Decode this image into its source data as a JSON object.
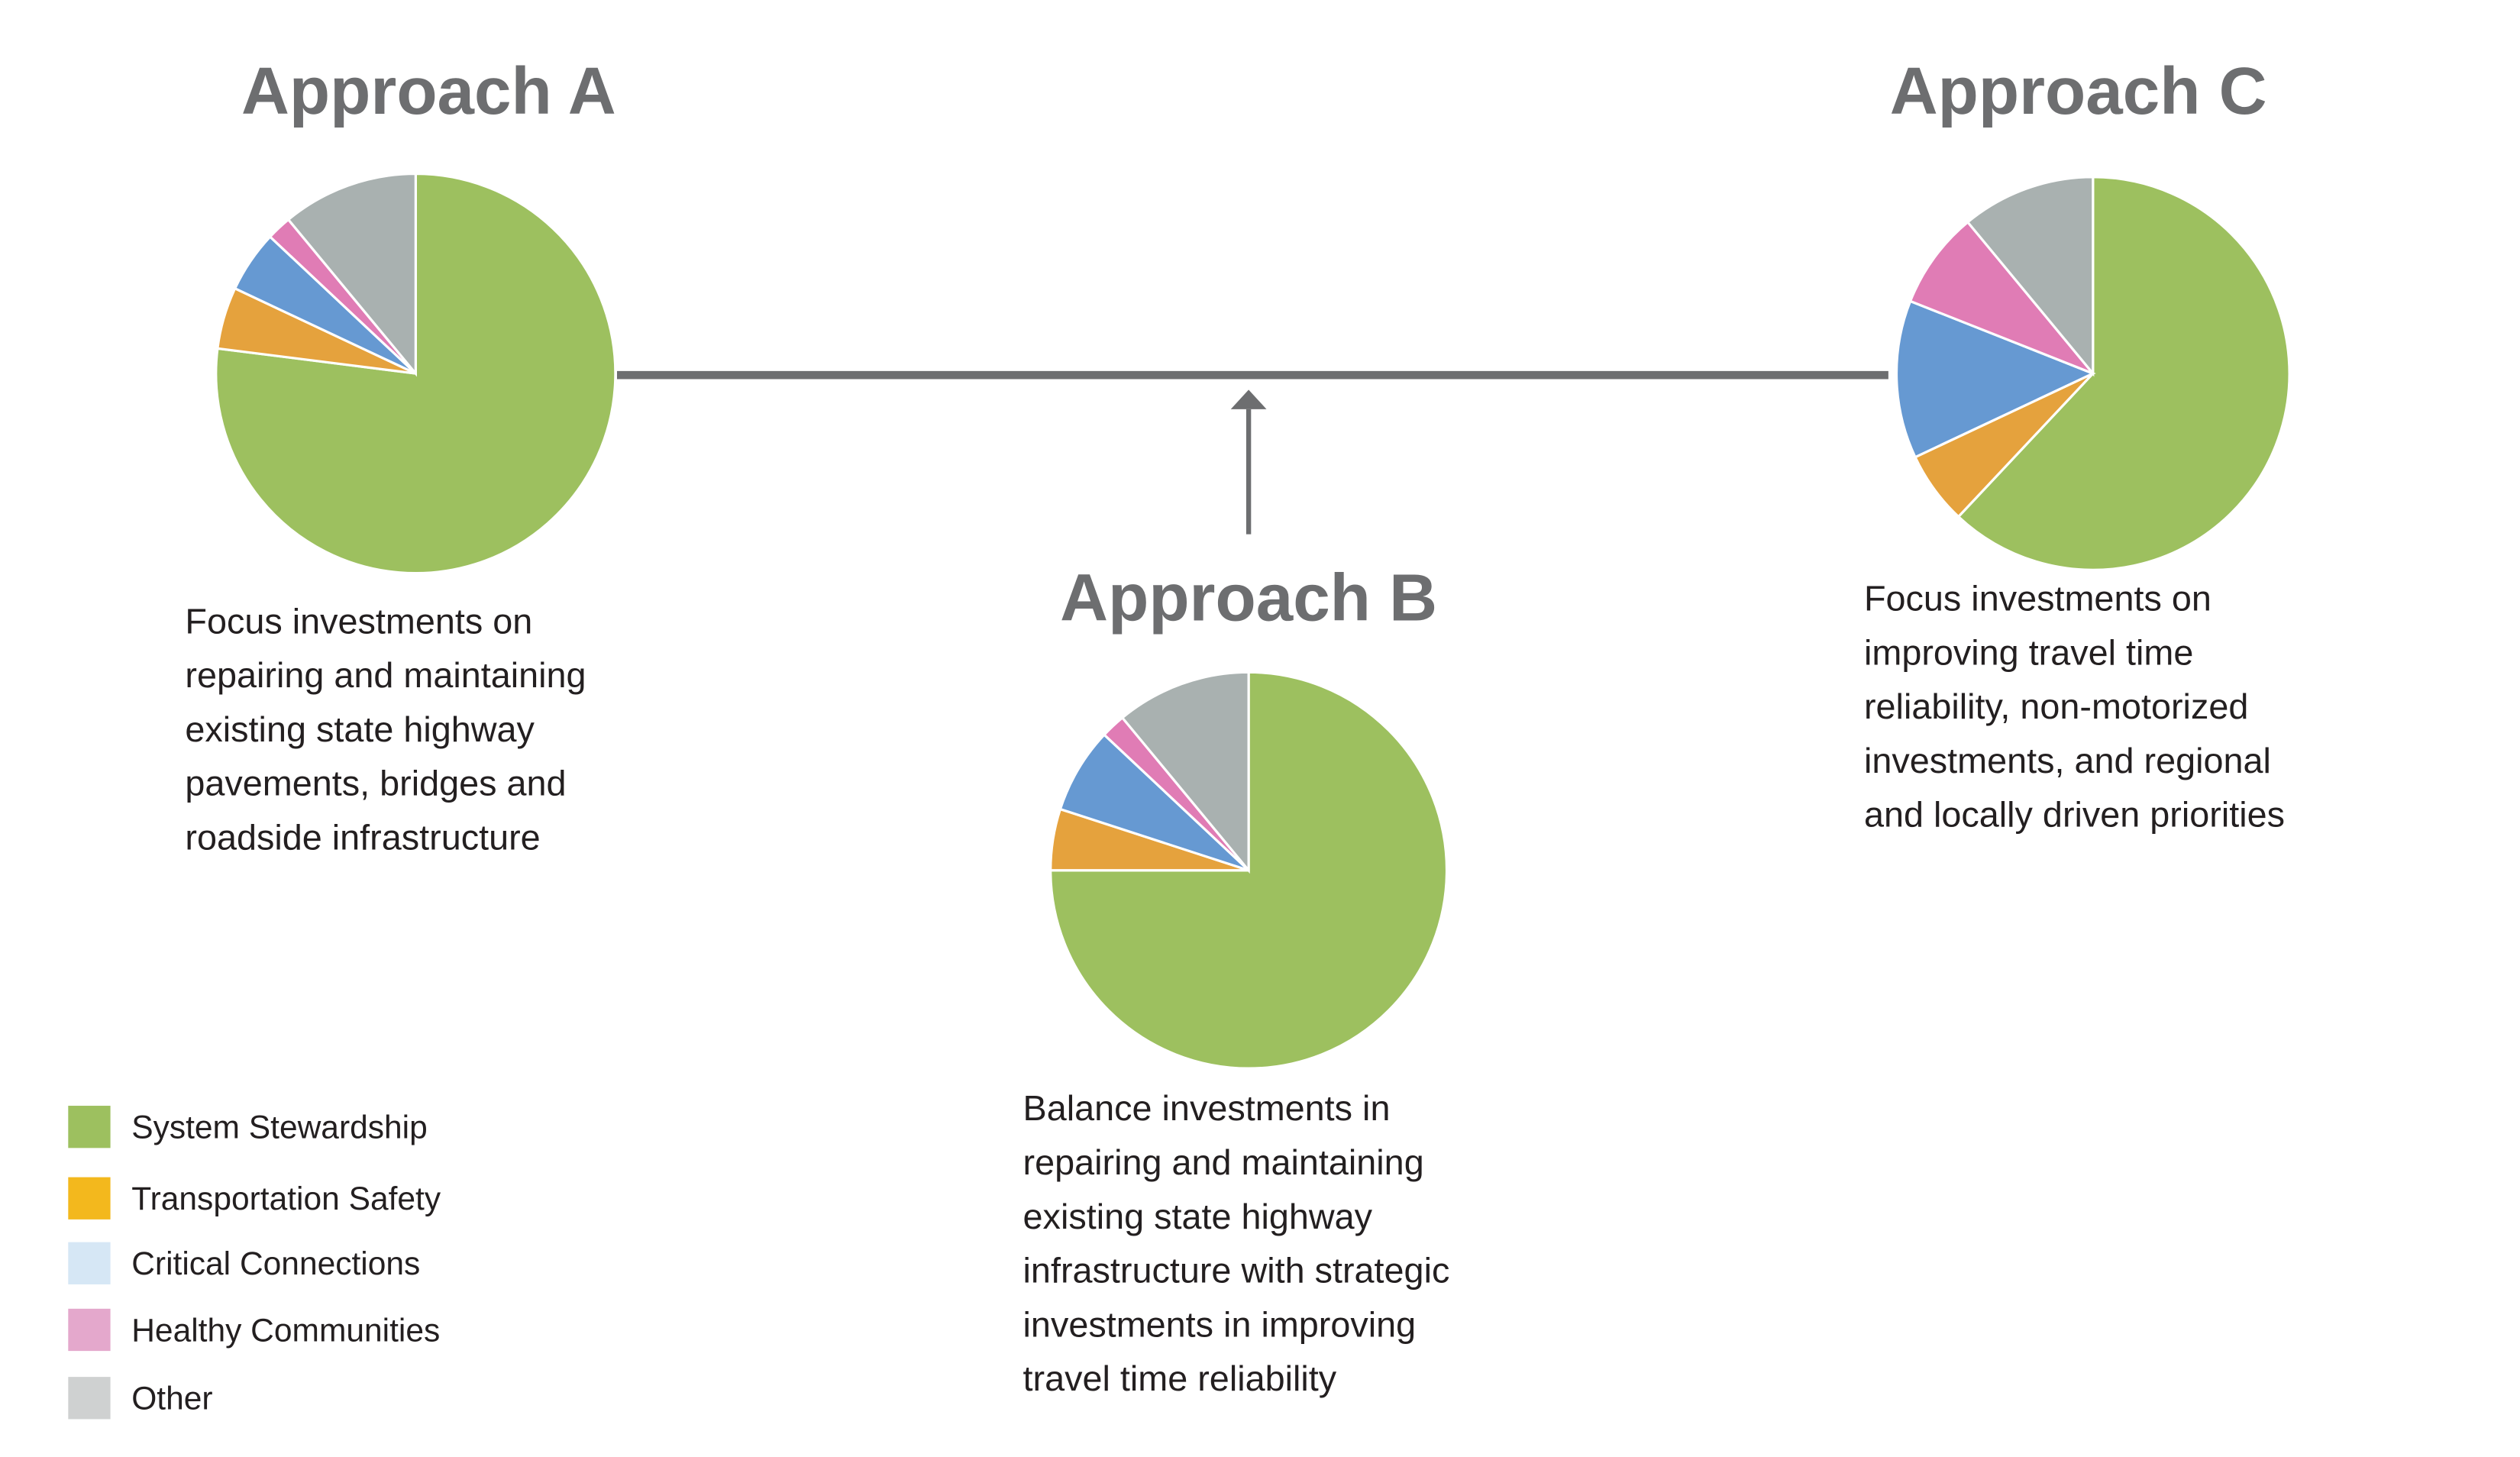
{
  "chart_data": [
    {
      "type": "pie",
      "title": "Approach A",
      "text": [
        "Focus investments on",
        "repairing and maintaining",
        "existing state highway",
        "pavements, bridges and",
        "roadside infrastructure"
      ],
      "values": [
        77,
        5,
        5,
        2,
        11
      ]
    },
    {
      "type": "pie",
      "title": "Approach B",
      "text": [
        "Balance investments in",
        "repairing and maintaining",
        "existing state highway",
        "infrastructure with strategic",
        "investments in improving",
        "travel time reliability"
      ],
      "values": [
        75,
        5,
        7,
        2,
        11
      ]
    },
    {
      "type": "pie",
      "title": "Approach C",
      "text": [
        "Focus investments on",
        "improving travel time",
        "reliability, non-motorized",
        "investments, and regional",
        "and locally driven priorities"
      ],
      "values": [
        62,
        6,
        13,
        8,
        11
      ]
    }
  ],
  "slice_colors": [
    "#9dc05f",
    "#e5a23d",
    "#6699d2",
    "#e07cb5",
    "#a9b1b0"
  ],
  "legend": {
    "labels": [
      "System Stewardship",
      "Transportation Safety",
      "Critical Connections",
      "Healthy Communities",
      "Other"
    ],
    "colors": [
      "#9dc05f",
      "#f3b81d",
      "#d6e7f5",
      "#e4a8cc",
      "#cfd1d1"
    ]
  }
}
